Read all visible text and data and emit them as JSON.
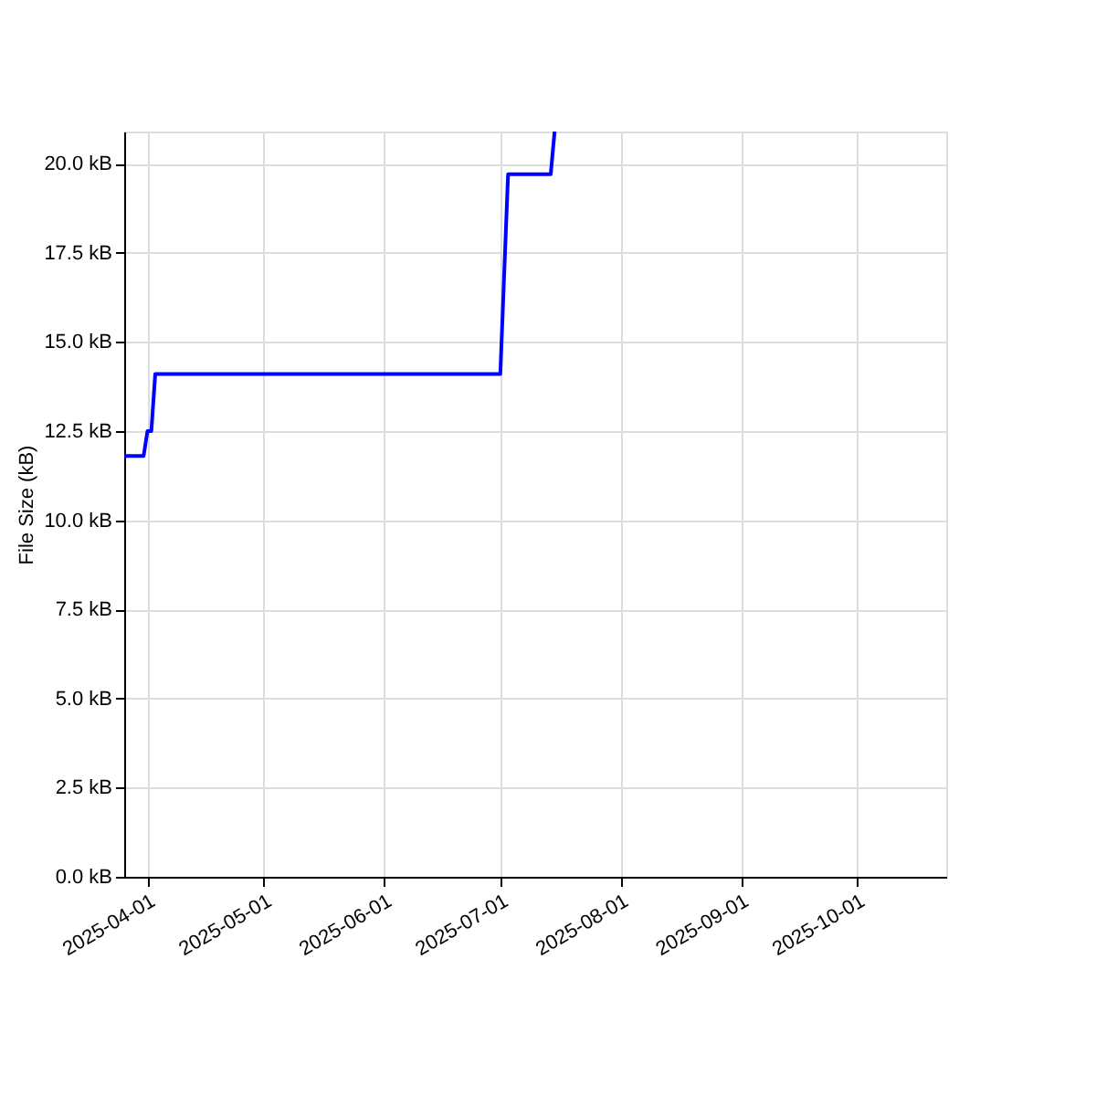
{
  "chart_data": {
    "type": "line",
    "ylabel": "File Size (kB)",
    "x": [
      "2025-03-26",
      "2025-03-31",
      "2025-04-01",
      "2025-04-02",
      "2025-04-03",
      "2025-07-01",
      "2025-07-03",
      "2025-07-14",
      "2025-07-15"
    ],
    "series": [
      {
        "color": "#0000ff",
        "values": [
          11.8,
          11.8,
          12.5,
          12.5,
          14.1,
          14.1,
          19.7,
          19.7,
          20.9
        ]
      }
    ],
    "xlim": [
      "2025-03-26",
      "2025-10-24"
    ],
    "xticks": [
      "2025-04-01",
      "2025-05-01",
      "2025-06-01",
      "2025-07-01",
      "2025-08-01",
      "2025-09-01",
      "2025-10-01"
    ],
    "ylim": [
      0,
      20.9
    ],
    "yticks": [
      {
        "value": 0,
        "label": "0.0 kB"
      },
      {
        "value": 2.5,
        "label": "2.5 kB"
      },
      {
        "value": 5,
        "label": "5.0 kB"
      },
      {
        "value": 7.5,
        "label": "7.5 kB"
      },
      {
        "value": 10,
        "label": "10.0 kB"
      },
      {
        "value": 12.5,
        "label": "12.5 kB"
      },
      {
        "value": 15,
        "label": "15.0 kB"
      },
      {
        "value": 17.5,
        "label": "17.5 kB"
      },
      {
        "value": 20,
        "label": "20.0 kB"
      }
    ],
    "grid": true,
    "line_style": "solid",
    "marker": "none"
  }
}
